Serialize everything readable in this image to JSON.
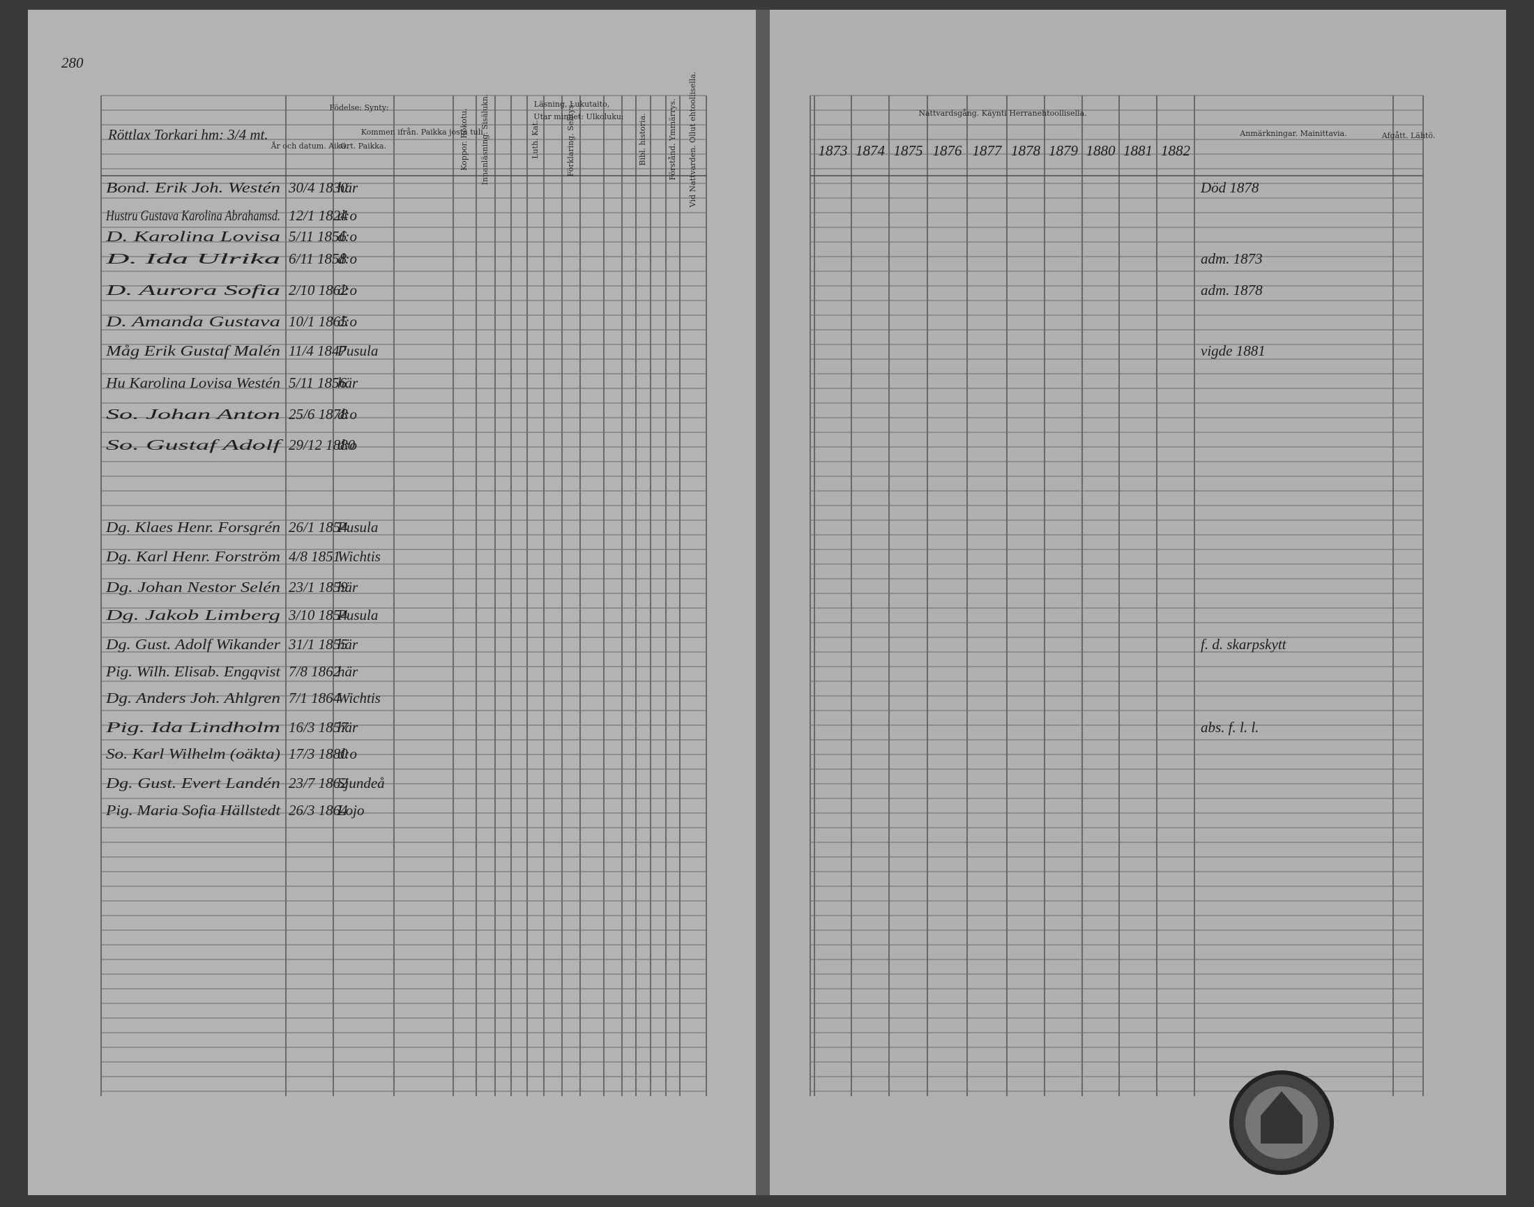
{
  "page_number": "280",
  "left_page": {
    "village": "Röttlax Torkari hm: 3/4 mt.",
    "headers": {
      "birth": "Födelse: Synty:",
      "date": "År och datum. Aika.",
      "place": "Ort. Paikka.",
      "came_from": "Kommen ifrån. Paikka josta tuli.",
      "reading": "Läsning, Lukutaito,",
      "by_heart": "Utar minnet: Ulkoluku:",
      "vaccination": "Koppor. Rokotu.",
      "inner_reading": "Innanläsning. Sisälukn.",
      "catechism": "Luth. Kat.",
      "explanation": "Förklaring. Selitys.",
      "bible_history": "Bibl. historia.",
      "understanding": "Förstånd. Ymmärrys.",
      "communion": "Vid Nattvarden. Ollut ehtoollisella."
    },
    "rows": [
      {
        "name": "Bond. Erik Joh. Westén",
        "date": "30/4 1830",
        "place": "här"
      },
      {
        "name": "Hustru Gustava Karolina Abrahamsd.",
        "date": "12/1 1824",
        "place": "d:o"
      },
      {
        "name": "D. Karolina Lovisa",
        "date": "5/11 1856",
        "place": "d:o"
      },
      {
        "name": "D. Ida Ulrika",
        "date": "6/11 1858",
        "place": "d:o"
      },
      {
        "name": "D. Aurora Sofia",
        "date": "2/10 1862",
        "place": "d:o"
      },
      {
        "name": "D. Amanda Gustava",
        "date": "10/1 1865",
        "place": "d:o"
      },
      {
        "name": "Måg Erik Gustaf Malén",
        "date": "11/4 1847",
        "place": "Pusula"
      },
      {
        "name": "Hu Karolina Lovisa Westén",
        "date": "5/11 1856",
        "place": "här"
      },
      {
        "name": "So. Johan Anton",
        "date": "25/6 1878",
        "place": "d:o"
      },
      {
        "name": "So. Gustaf Adolf",
        "date": "29/12 1880",
        "place": "d:o"
      },
      {
        "name": "Dg. Klaes Henr. Forsgrén",
        "date": "26/1 1854",
        "place": "Pusula"
      },
      {
        "name": "Dg. Karl Henr. Forström",
        "date": "4/8 1851",
        "place": "Wichtis"
      },
      {
        "name": "Dg. Johan Nestor Selén",
        "date": "23/1 1859",
        "place": "här"
      },
      {
        "name": "Dg. Jakob Limberg",
        "date": "3/10 1854",
        "place": "Pusula"
      },
      {
        "name": "Dg. Gust. Adolf Wikander",
        "date": "31/1 1855",
        "place": "här"
      },
      {
        "name": "Pig. Wilh. Elisab. Engqvist",
        "date": "7/8 1862",
        "place": "här"
      },
      {
        "name": "Dg. Anders Joh. Ahlgren",
        "date": "7/1 1864",
        "place": "Wichtis"
      },
      {
        "name": "Pig. Ida Lindholm",
        "date": "16/3 1857",
        "place": "här"
      },
      {
        "name": "So. Karl Wilhelm (oäkta)",
        "date": "17/3 1880",
        "place": "d:o"
      },
      {
        "name": "Dg. Gust. Evert Landén",
        "date": "23/7 1862",
        "place": "Sjundeå"
      },
      {
        "name": "Pig. Maria Sofia Hällstedt",
        "date": "26/3 1864",
        "place": "Lojo"
      }
    ]
  },
  "right_page": {
    "communion_header": "Nattvardsgång. Käynti Herranehtoollisella.",
    "years": [
      "1873",
      "1874",
      "1875",
      "1876",
      "1877",
      "1878",
      "1879",
      "1880",
      "1881",
      "1882"
    ],
    "remarks_header": "Anmärkningar. Mainittavia.",
    "departed_header": "Afgått. Lähtö.",
    "remarks": [
      {
        "row": 0,
        "text": "Död 1878"
      },
      {
        "row": 3,
        "text": "adm. 1873"
      },
      {
        "row": 4,
        "text": "adm. 1878"
      },
      {
        "row": 6,
        "text": "vigde 1881"
      },
      {
        "row": 14,
        "text": "f. d. skarpskytt"
      },
      {
        "row": 17,
        "text": "abs. f. l. l."
      }
    ]
  }
}
